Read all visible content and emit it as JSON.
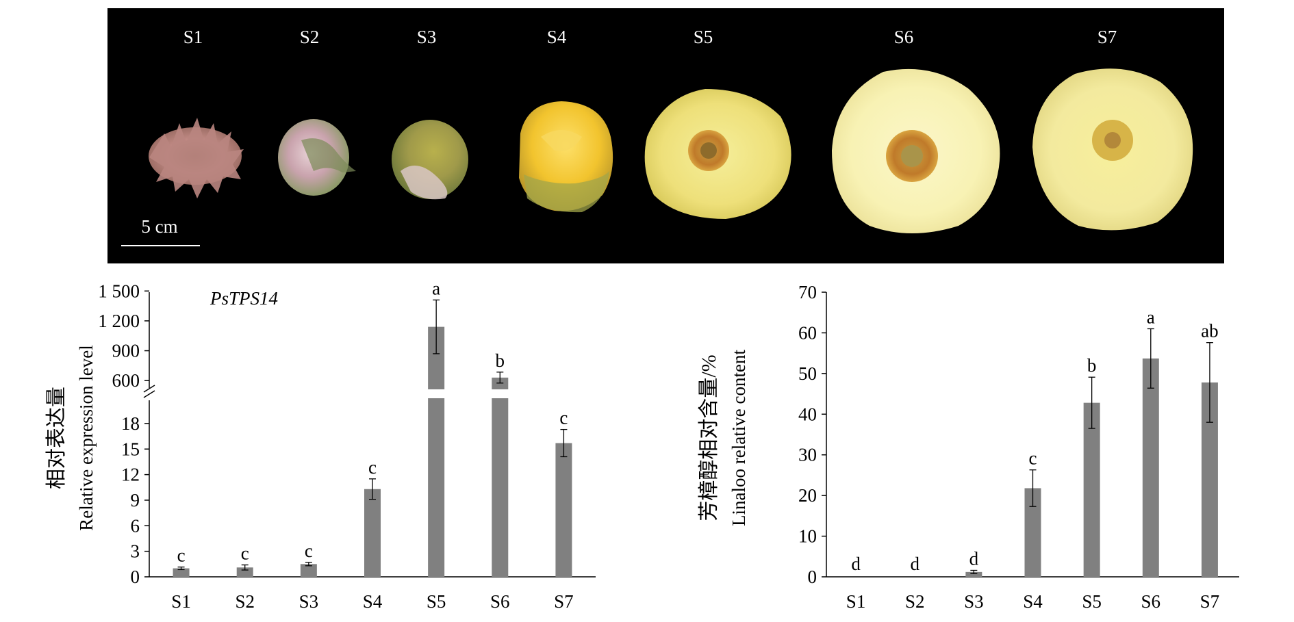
{
  "photo_panel": {
    "stage_labels": [
      "S1",
      "S2",
      "S3",
      "S4",
      "S5",
      "S6",
      "S7"
    ],
    "scale_bar_label": "5 cm",
    "background_color": "#000000"
  },
  "chart_data": [
    {
      "type": "bar",
      "gene_label": "PsTPS14",
      "ylabel": "相对表达量",
      "ylabel_en": "Relative expression level",
      "categories": [
        "S1",
        "S2",
        "S3",
        "S4",
        "S5",
        "S6",
        "S7"
      ],
      "values": [
        1.0,
        1.1,
        1.5,
        10.3,
        1140,
        630,
        15.7
      ],
      "errors": [
        0.15,
        0.3,
        0.2,
        1.2,
        270,
        55,
        1.6
      ],
      "significance": [
        "c",
        "c",
        "c",
        "c",
        "a",
        "b",
        "c"
      ],
      "y_axis_break": true,
      "ylim_lower": [
        0,
        20
      ],
      "ylim_upper": [
        450,
        1550
      ],
      "yticks_lower": [
        "0",
        "3",
        "6",
        "9",
        "12",
        "15",
        "18"
      ],
      "yticks_upper": [
        "600",
        "900",
        "1 200",
        "1 500"
      ],
      "bar_color": "#808080"
    },
    {
      "type": "bar",
      "ylabel": "芳樟醇相对含量/%",
      "ylabel_en": "Linaloo relative content",
      "categories": [
        "S1",
        "S2",
        "S3",
        "S4",
        "S5",
        "S6",
        "S7"
      ],
      "values": [
        0,
        0,
        1.2,
        21.8,
        42.8,
        53.7,
        47.8
      ],
      "errors": [
        0,
        0,
        0.4,
        4.5,
        6.3,
        7.3,
        9.8
      ],
      "significance": [
        "d",
        "d",
        "d",
        "c",
        "b",
        "a",
        "ab"
      ],
      "ylim": [
        0,
        70
      ],
      "yticks": [
        "0",
        "10",
        "20",
        "30",
        "40",
        "50",
        "60",
        "70"
      ],
      "bar_color": "#808080"
    }
  ]
}
